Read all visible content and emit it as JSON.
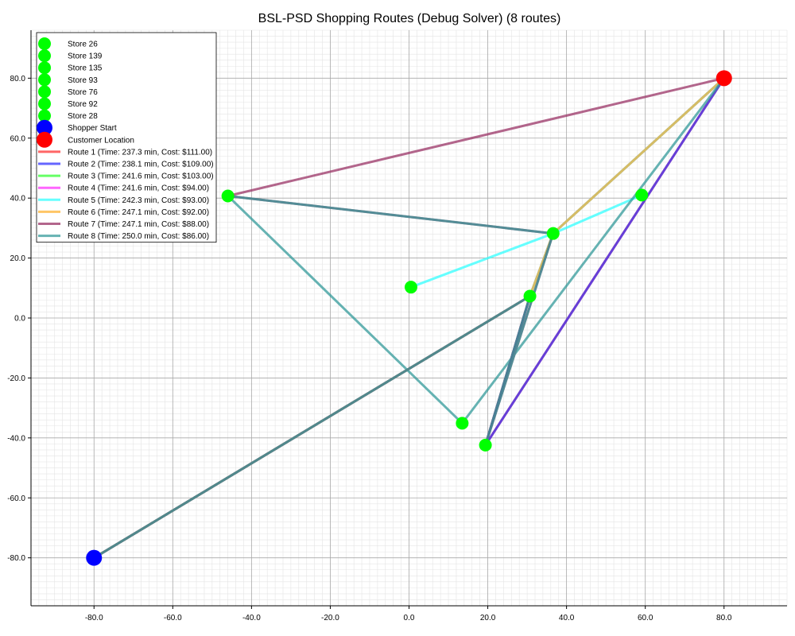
{
  "chart_data": {
    "type": "scatter",
    "title": "BSL-PSD Shopping Routes (Debug Solver) (8 routes)",
    "xlabel": "",
    "ylabel": "",
    "xlim": [
      -96,
      96
    ],
    "ylim": [
      -96,
      96
    ],
    "x_ticks": [
      -80,
      -60,
      -40,
      -20,
      0,
      20,
      40,
      60,
      80
    ],
    "y_ticks": [
      -80,
      -60,
      -40,
      -20,
      0,
      20,
      40,
      60,
      80
    ],
    "tick_labels_x": [
      "-80.0",
      "-60.0",
      "-40.0",
      "-20.0",
      "0.0",
      "20.0",
      "40.0",
      "60.0",
      "80.0"
    ],
    "tick_labels_y": [
      "-80.0",
      "-60.0",
      "-40.0",
      "-20.0",
      "0.0",
      "20.0",
      "40.0",
      "60.0",
      "80.0"
    ],
    "grid": true,
    "legend_position": "top-left",
    "stores": [
      {
        "name": "Store 26",
        "x": 0.5,
        "y": 10.3
      },
      {
        "name": "Store 139",
        "x": 19.4,
        "y": -42.4
      },
      {
        "name": "Store 135",
        "x": 13.5,
        "y": -35.1
      },
      {
        "name": "Store 93",
        "x": 59.1,
        "y": 41.0
      },
      {
        "name": "Store 76",
        "x": 36.6,
        "y": 28.2
      },
      {
        "name": "Store 92",
        "x": -46.0,
        "y": 40.7
      },
      {
        "name": "Store 28",
        "x": 30.7,
        "y": 7.3
      }
    ],
    "store_color": "#00ff00",
    "shopper_start": {
      "name": "Shopper Start",
      "x": -80,
      "y": -80,
      "color": "#0000ff"
    },
    "customer_location": {
      "name": "Customer Location",
      "x": 80,
      "y": 80,
      "color": "#ff0000"
    },
    "routes": [
      {
        "name": "Route 1 (Time: 237.3 min, Cost: $111.00)",
        "color": "#ff3333",
        "path": [
          [
            -80,
            -80
          ],
          [
            30.7,
            7.3
          ],
          [
            19.4,
            -42.4
          ],
          [
            80,
            80
          ]
        ]
      },
      {
        "name": "Route 2 (Time: 238.1 min, Cost: $109.00)",
        "color": "#3333ff",
        "path": [
          [
            -80,
            -80
          ],
          [
            30.7,
            7.3
          ],
          [
            19.4,
            -42.4
          ],
          [
            80,
            80
          ]
        ]
      },
      {
        "name": "Route 3 (Time: 241.6 min, Cost: $103.00)",
        "color": "#33ff33",
        "path": [
          [
            -80,
            -80
          ],
          [
            30.7,
            7.3
          ],
          [
            36.6,
            28.2
          ],
          [
            80,
            80
          ]
        ]
      },
      {
        "name": "Route 4 (Time: 241.6 min, Cost: $94.00)",
        "color": "#ff33ff",
        "path": [
          [
            -80,
            -80
          ],
          [
            30.7,
            7.3
          ],
          [
            36.6,
            28.2
          ],
          [
            80,
            80
          ]
        ]
      },
      {
        "name": "Route 5 (Time: 242.3 min, Cost: $93.00)",
        "color": "#33ffff",
        "path": [
          [
            -80,
            -80
          ],
          [
            30.7,
            7.3
          ],
          [
            36.6,
            28.2
          ],
          [
            0.5,
            10.3
          ],
          [
            36.6,
            28.2
          ],
          [
            59.1,
            41.0
          ],
          [
            36.6,
            28.2
          ],
          [
            80,
            80
          ]
        ]
      },
      {
        "name": "Route 6 (Time: 247.1 min, Cost: $92.00)",
        "color": "#ffb333",
        "path": [
          [
            -80,
            -80
          ],
          [
            30.7,
            7.3
          ],
          [
            36.6,
            28.2
          ],
          [
            80,
            80
          ]
        ]
      },
      {
        "name": "Route 7 (Time: 247.1 min, Cost: $88.00)",
        "color": "#993366",
        "path": [
          [
            -80,
            -80
          ],
          [
            30.7,
            7.3
          ],
          [
            19.4,
            -42.4
          ],
          [
            36.6,
            28.2
          ],
          [
            -46.0,
            40.7
          ],
          [
            80,
            80
          ]
        ]
      },
      {
        "name": "Route 8 (Time: 250.0 min, Cost: $86.00)",
        "color": "#339999",
        "path": [
          [
            -80,
            -80
          ],
          [
            30.7,
            7.3
          ],
          [
            19.4,
            -42.4
          ],
          [
            36.6,
            28.2
          ],
          [
            -46.0,
            40.7
          ],
          [
            13.5,
            -35.1
          ],
          [
            80,
            80
          ]
        ]
      }
    ]
  }
}
